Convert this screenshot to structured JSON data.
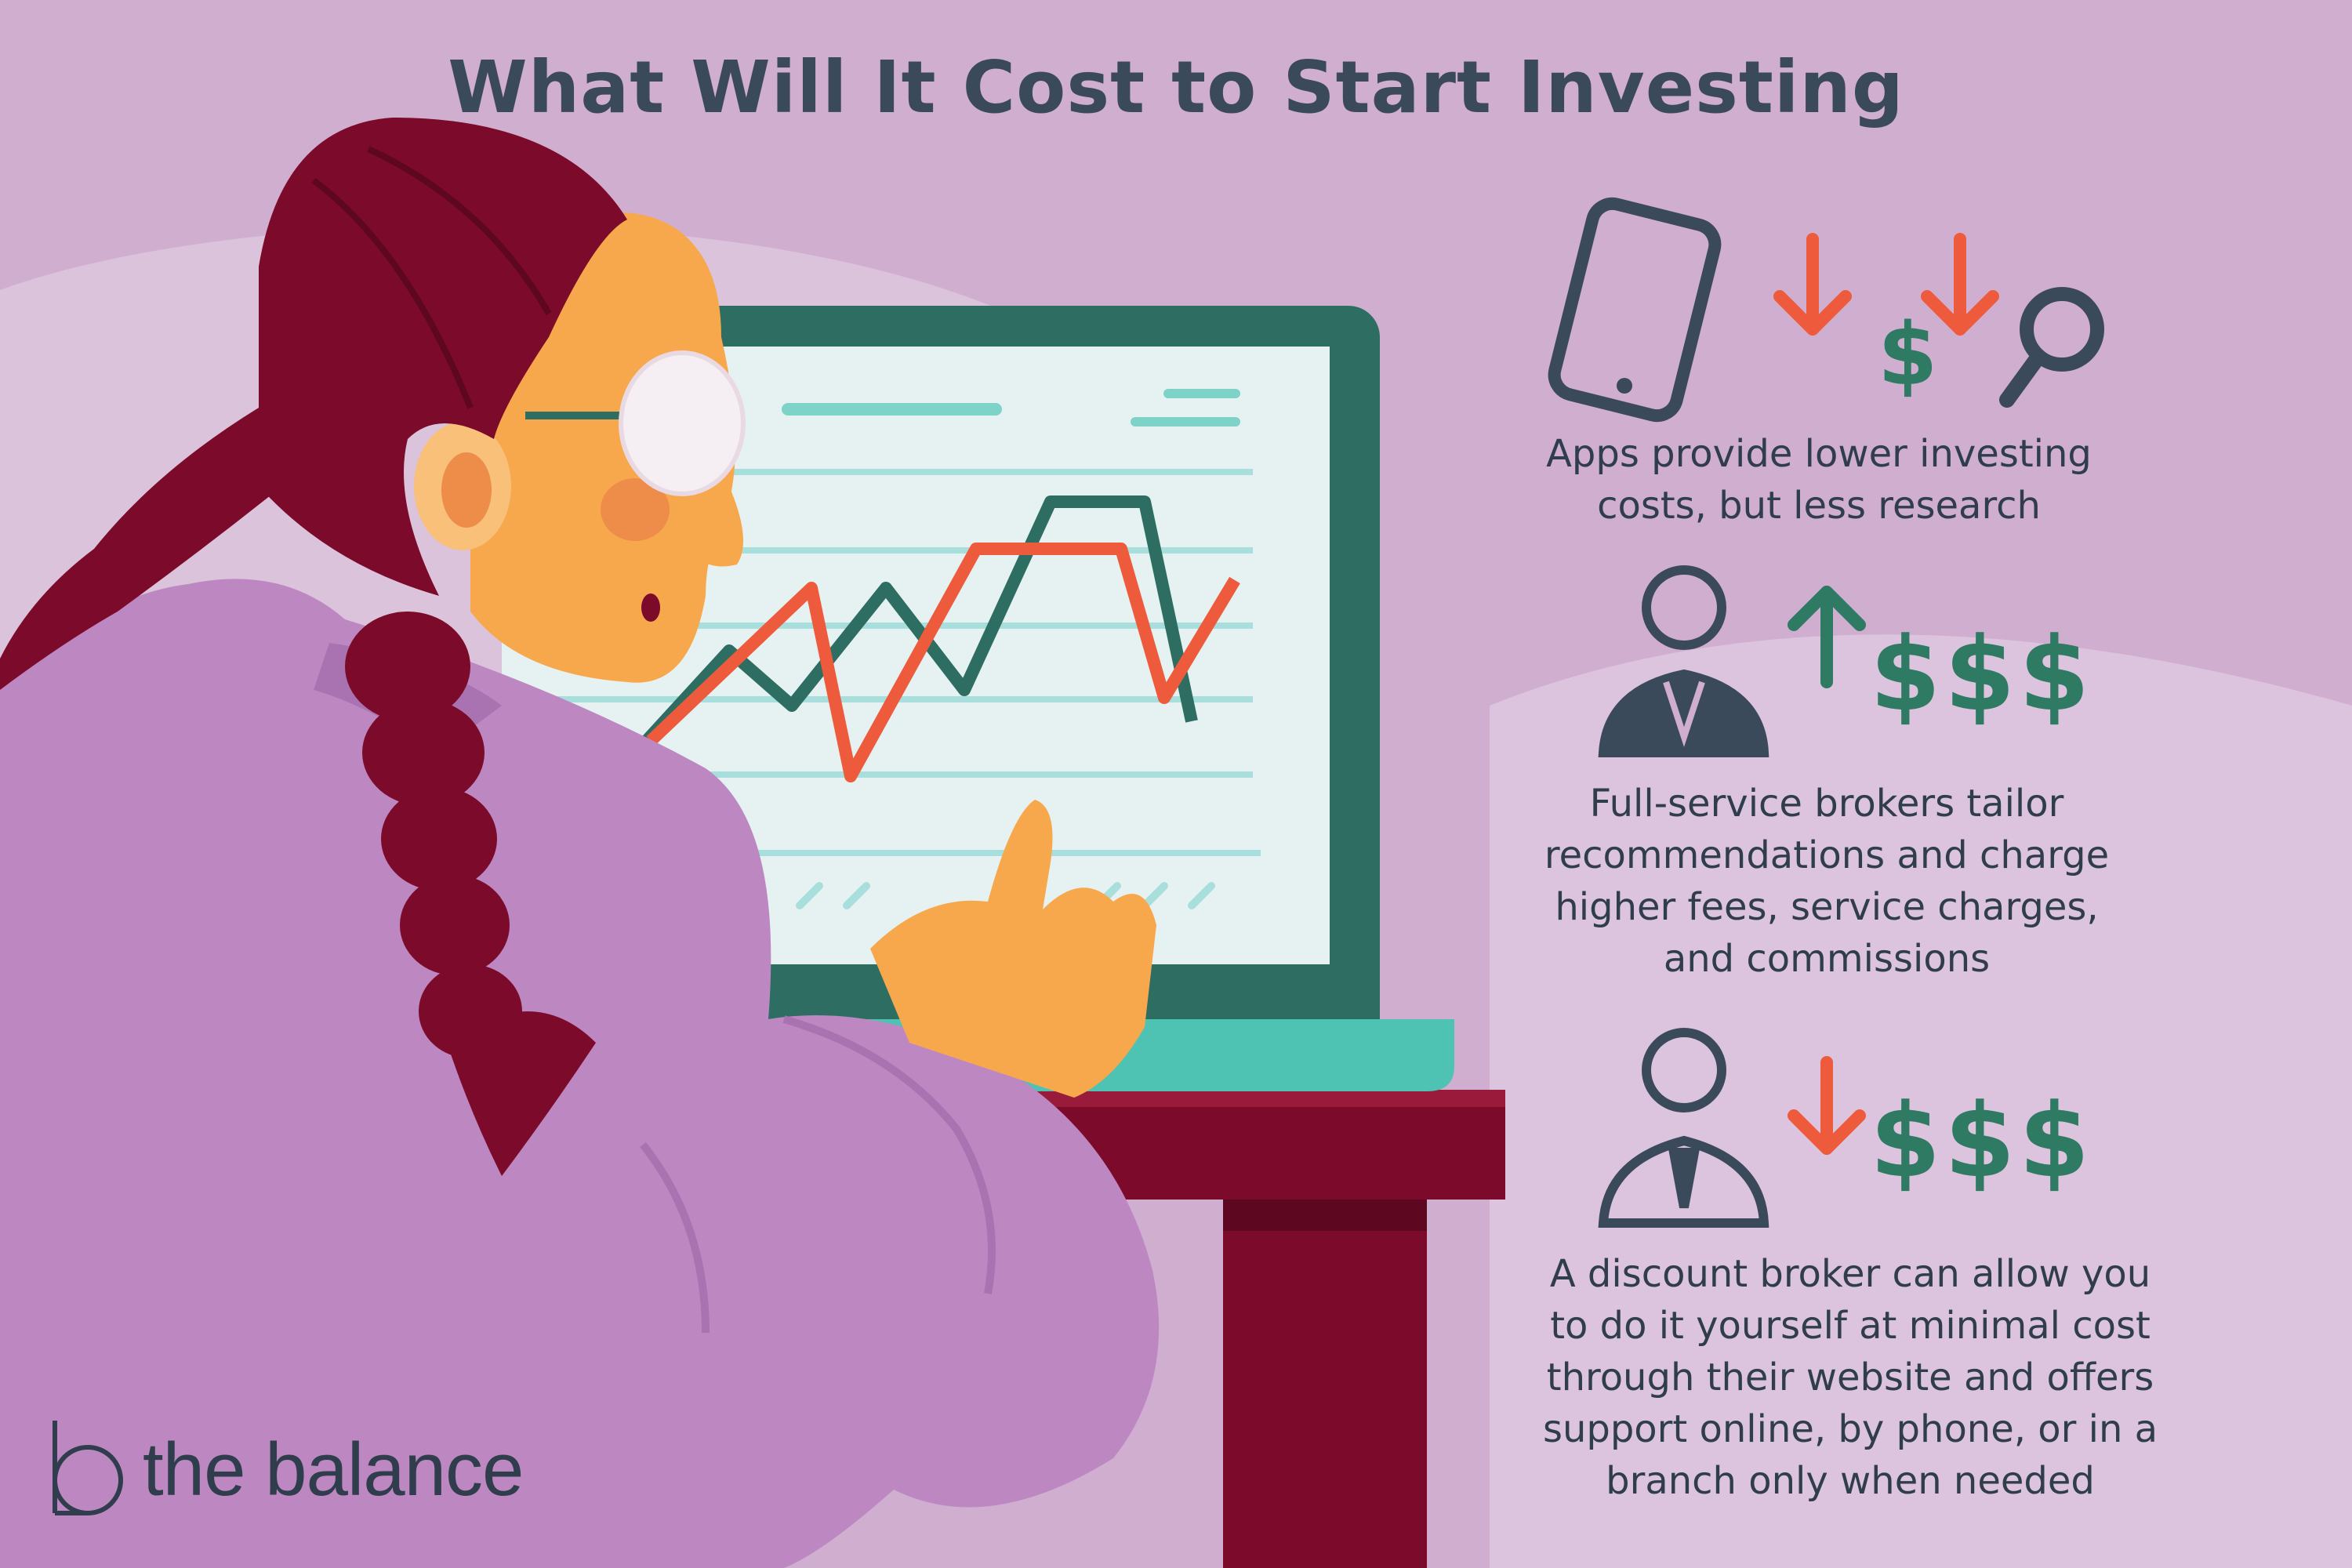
{
  "title": "What Will It Cost to Start Investing",
  "sections": [
    {
      "lines": [
        "Apps provide lower investing",
        "costs, but less research"
      ],
      "icons": [
        "smartphone-icon",
        "arrow-down-icon",
        "dollar-icon",
        "arrow-down-icon",
        "magnifier-icon"
      ]
    },
    {
      "lines": [
        "Full-service brokers tailor",
        "recommendations and charge",
        "higher fees, service charges,",
        "and commissions"
      ],
      "icons": [
        "broker-suit-icon",
        "arrow-up-icon",
        "dollar-icon",
        "dollar-icon",
        "dollar-icon"
      ]
    },
    {
      "lines": [
        "A discount broker can allow you",
        "to do it yourself at minimal cost",
        "through their website and offers",
        "support online, by phone, or in a",
        "branch only when needed"
      ],
      "icons": [
        "broker-shirt-icon",
        "arrow-down-icon",
        "dollar-icon",
        "dollar-icon",
        "dollar-icon"
      ]
    }
  ],
  "logo": {
    "text": "the balance",
    "icon": "the-balance-logo-icon"
  },
  "colors": {
    "background": "#d0aed0",
    "background_light": "#dcc3dc",
    "title": "#3b4a5a",
    "icon_dark": "#3b4a5a",
    "dollar_green": "#2e7a62",
    "arrow_red": "#ee5a3c",
    "chart_red": "#ee5a3c",
    "chart_green": "#2e6e62",
    "laptop_frame": "#2e6e62",
    "laptop_base": "#4ec3b4",
    "screen": "#e6f2f2",
    "hair": "#7c0a2a",
    "skin": "#f7a84c",
    "sweater": "#bd88c2",
    "chair": "#4ec3b4",
    "desk": "#7c0a2a"
  }
}
